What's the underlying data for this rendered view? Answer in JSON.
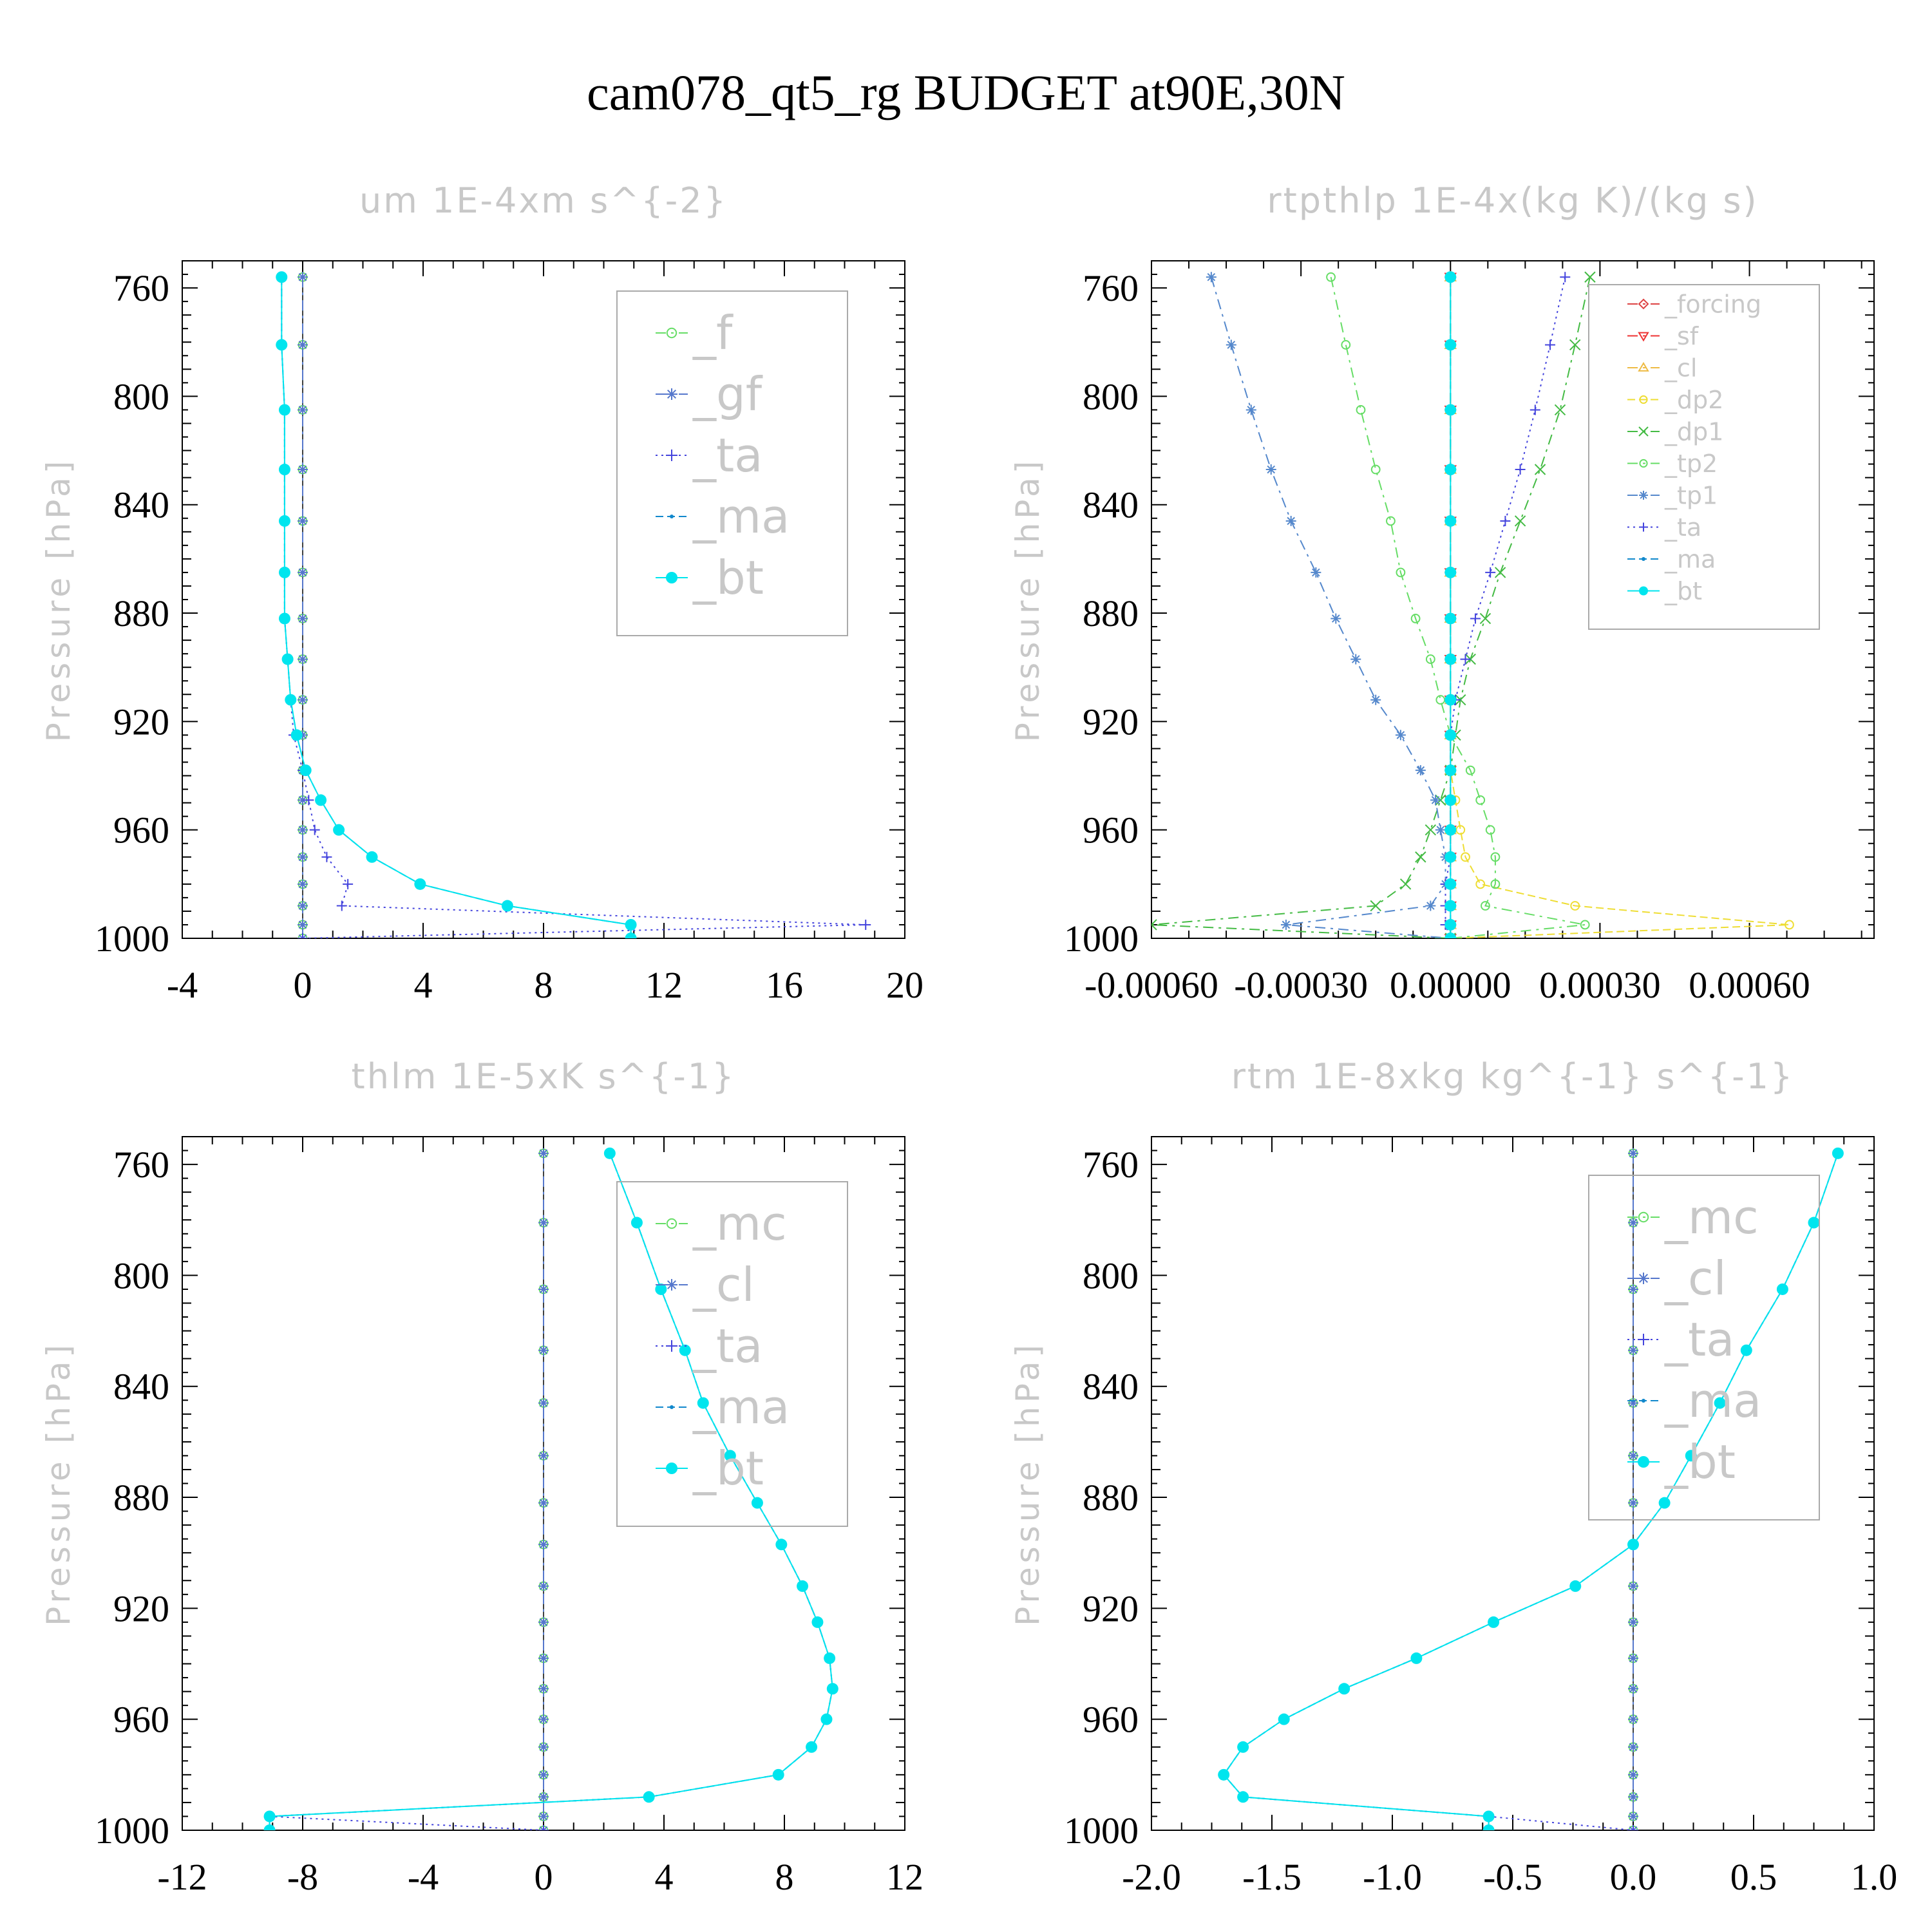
{
  "figure_title": "cam078_qt5_rg  BUDGET at90E,30N",
  "chart_data": [
    {
      "type": "line",
      "title": "um   1E-4xm s^{-2}",
      "ylabel": "Pressure [hPa]",
      "xlabel": "",
      "xlim": [
        -4,
        20
      ],
      "ylim": [
        1000,
        750
      ],
      "xticks": [
        -4,
        0,
        4,
        8,
        12,
        16,
        20
      ],
      "xtick_labels": [
        "-4",
        "0",
        "4",
        "8",
        "12",
        "16",
        "20"
      ],
      "yticks": [
        760,
        800,
        840,
        880,
        920,
        960,
        1000
      ],
      "ytick_labels": [
        "760",
        "800",
        "840",
        "880",
        "920",
        "960",
        "1000"
      ],
      "pressure": [
        756,
        781,
        805,
        827,
        846,
        865,
        882,
        897,
        912,
        925,
        938,
        949,
        960,
        970,
        980,
        988,
        995,
        1000
      ],
      "legend_position": "top-right",
      "series": [
        {
          "name": "_f",
          "color": "#66dd66",
          "marker": "circle-open",
          "dash": "16,8,4,8",
          "values": [
            0,
            0,
            0,
            0,
            0,
            0,
            0,
            0,
            0,
            0,
            0,
            0,
            0,
            0,
            0,
            0,
            0,
            0
          ]
        },
        {
          "name": "_gf",
          "color": "#5577cc",
          "marker": "star",
          "dash": "16,8,4,8",
          "values": [
            0,
            0,
            0,
            0,
            0,
            0,
            0,
            0,
            0,
            0,
            0,
            0,
            0,
            0,
            0,
            0,
            0,
            0
          ]
        },
        {
          "name": "_ta",
          "color": "#4444dd",
          "marker": "plus",
          "dash": "3,6",
          "values": [
            -0.7,
            -0.7,
            -0.6,
            -0.6,
            -0.6,
            -0.6,
            -0.6,
            -0.5,
            -0.4,
            -0.3,
            0,
            0.2,
            0.4,
            0.8,
            1.5,
            1.3,
            18.7,
            0
          ]
        },
        {
          "name": "_ma",
          "color": "#1188cc",
          "marker": "dot",
          "dash": "12,6",
          "values": [
            -0.7,
            -0.7,
            -0.6,
            -0.6,
            -0.6,
            -0.6,
            -0.6,
            -0.5,
            -0.4,
            -0.2,
            0.1,
            0.6,
            1.2,
            2.3,
            3.9,
            6.8,
            10.9,
            10.9
          ]
        },
        {
          "name": "_bt",
          "color": "#00e5ee",
          "marker": "filled-circle",
          "dash": "",
          "values": [
            -0.7,
            -0.7,
            -0.6,
            -0.6,
            -0.6,
            -0.6,
            -0.6,
            -0.5,
            -0.4,
            -0.2,
            0.1,
            0.6,
            1.2,
            2.3,
            3.9,
            6.8,
            10.9,
            10.9
          ]
        }
      ]
    },
    {
      "type": "line",
      "title": "rtpthlp   1E-4x(kg K)/(kg s)",
      "ylabel": "Pressure [hPa]",
      "xlabel": "",
      "xlim": [
        -0.0006,
        0.00085
      ],
      "ylim": [
        1000,
        750
      ],
      "xticks": [
        -0.0006,
        -0.0003,
        0,
        0.0003,
        0.0006
      ],
      "xtick_labels": [
        "-0.00060",
        "-0.00030",
        "0.00000",
        "0.00030",
        "0.00060"
      ],
      "yticks": [
        760,
        800,
        840,
        880,
        920,
        960,
        1000
      ],
      "ytick_labels": [
        "760",
        "800",
        "840",
        "880",
        "920",
        "960",
        "1000"
      ],
      "pressure": [
        756,
        781,
        805,
        827,
        846,
        865,
        882,
        897,
        912,
        925,
        938,
        949,
        960,
        970,
        980,
        988,
        995,
        1000
      ],
      "legend_position": "top-right",
      "series": [
        {
          "name": "_forcing",
          "color": "#dd4444",
          "marker": "diamond-open",
          "dash": "16,8,4,8",
          "values": [
            0,
            0,
            0,
            0,
            0,
            0,
            0,
            0,
            0,
            0,
            0,
            0,
            0,
            0,
            0,
            0,
            0,
            0
          ]
        },
        {
          "name": "_sf",
          "color": "#ee3333",
          "marker": "triangle-down",
          "dash": "16,8,4,8",
          "values": [
            0,
            0,
            0,
            0,
            0,
            0,
            0,
            0,
            0,
            0,
            0,
            0,
            0,
            0,
            0,
            0,
            0,
            0
          ]
        },
        {
          "name": "_cl",
          "color": "#eebb44",
          "marker": "triangle-up",
          "dash": "16,8,4,8",
          "values": [
            0,
            0,
            0,
            0,
            0,
            0,
            0,
            0,
            0,
            0,
            0,
            0,
            0,
            0,
            0,
            0,
            0,
            0
          ]
        },
        {
          "name": "_dp2",
          "color": "#eedd33",
          "marker": "circle-open",
          "dash": "12,6",
          "values": [
            0,
            0,
            0,
            0,
            0,
            0,
            0,
            0,
            0,
            0,
            0,
            1e-05,
            2e-05,
            3e-05,
            6e-05,
            0.00025,
            0.00068,
            0
          ]
        },
        {
          "name": "_dp1",
          "color": "#44bb44",
          "marker": "x",
          "dash": "16,8,4,8",
          "values": [
            0.00028,
            0.00025,
            0.00022,
            0.00018,
            0.00014,
            0.0001,
            7e-05,
            4e-05,
            2e-05,
            1e-05,
            0,
            -2e-05,
            -4e-05,
            -6e-05,
            -9e-05,
            -0.00015,
            -0.0006,
            0
          ]
        },
        {
          "name": "_tp2",
          "color": "#66dd66",
          "marker": "circle-open",
          "dash": "16,8,4,8",
          "values": [
            -0.00024,
            -0.00021,
            -0.00018,
            -0.00015,
            -0.00012,
            -0.0001,
            -7e-05,
            -4e-05,
            -2e-05,
            0,
            4e-05,
            6e-05,
            8e-05,
            9e-05,
            9e-05,
            7e-05,
            0.00027,
            0
          ]
        },
        {
          "name": "_tp1",
          "color": "#5588cc",
          "marker": "star",
          "dash": "16,8,4,8",
          "values": [
            -0.00048,
            -0.00044,
            -0.0004,
            -0.00036,
            -0.00032,
            -0.00027,
            -0.00023,
            -0.00019,
            -0.00015,
            -0.0001,
            -6e-05,
            -3e-05,
            -2e-05,
            -1e-05,
            -1e-05,
            -4e-05,
            -0.00033,
            0
          ]
        },
        {
          "name": "_ta",
          "color": "#4444dd",
          "marker": "plus",
          "dash": "3,6",
          "values": [
            0.00023,
            0.0002,
            0.00017,
            0.00014,
            0.00011,
            8e-05,
            5e-05,
            3e-05,
            1e-05,
            0,
            0,
            0,
            0,
            0,
            -1e-05,
            -1e-05,
            -1e-05,
            0
          ]
        },
        {
          "name": "_ma",
          "color": "#1188cc",
          "marker": "dot",
          "dash": "12,6",
          "values": [
            0,
            0,
            0,
            0,
            0,
            0,
            0,
            0,
            0,
            0,
            0,
            0,
            0,
            0,
            0,
            0,
            0,
            0
          ]
        },
        {
          "name": "_bt",
          "color": "#00e5ee",
          "marker": "filled-circle",
          "dash": "",
          "values": [
            0,
            0,
            0,
            0,
            0,
            0,
            0,
            0,
            0,
            0,
            0,
            0,
            0,
            0,
            0,
            0,
            0,
            0
          ]
        }
      ]
    },
    {
      "type": "line",
      "title": "thlm   1E-5xK s^{-1}",
      "ylabel": "Pressure [hPa]",
      "xlabel": "",
      "xlim": [
        -12,
        12
      ],
      "ylim": [
        1000,
        750
      ],
      "xticks": [
        -12,
        -8,
        -4,
        0,
        4,
        8,
        12
      ],
      "xtick_labels": [
        "-12",
        "-8",
        "-4",
        "0",
        "4",
        "8",
        "12"
      ],
      "yticks": [
        760,
        800,
        840,
        880,
        920,
        960,
        1000
      ],
      "ytick_labels": [
        "760",
        "800",
        "840",
        "880",
        "920",
        "960",
        "1000"
      ],
      "pressure": [
        756,
        781,
        805,
        827,
        846,
        865,
        882,
        897,
        912,
        925,
        938,
        949,
        960,
        970,
        980,
        988,
        995,
        1000
      ],
      "legend_position": "top-right",
      "series": [
        {
          "name": "_mc",
          "color": "#66dd66",
          "marker": "circle-open",
          "dash": "16,8,4,8",
          "values": [
            0,
            0,
            0,
            0,
            0,
            0,
            0,
            0,
            0,
            0,
            0,
            0,
            0,
            0,
            0,
            0,
            0,
            0
          ]
        },
        {
          "name": "_cl",
          "color": "#5577cc",
          "marker": "star",
          "dash": "16,8,4,8",
          "values": [
            0,
            0,
            0,
            0,
            0,
            0,
            0,
            0,
            0,
            0,
            0,
            0,
            0,
            0,
            0,
            0,
            0,
            0
          ]
        },
        {
          "name": "_ta",
          "color": "#4444dd",
          "marker": "plus",
          "dash": "3,6",
          "values": [
            2.2,
            3.1,
            3.9,
            4.7,
            5.3,
            6.2,
            7.1,
            7.9,
            8.6,
            9.1,
            9.5,
            9.6,
            9.4,
            8.9,
            7.8,
            3.5,
            -9.1,
            0
          ]
        },
        {
          "name": "_ma",
          "color": "#1188cc",
          "marker": "dot",
          "dash": "12,6",
          "values": [
            2.2,
            3.1,
            3.9,
            4.7,
            5.3,
            6.2,
            7.1,
            7.9,
            8.6,
            9.1,
            9.5,
            9.6,
            9.4,
            8.9,
            7.8,
            3.5,
            -9.1,
            -9.1
          ]
        },
        {
          "name": "_bt",
          "color": "#00e5ee",
          "marker": "filled-circle",
          "dash": "",
          "values": [
            2.2,
            3.1,
            3.9,
            4.7,
            5.3,
            6.2,
            7.1,
            7.9,
            8.6,
            9.1,
            9.5,
            9.6,
            9.4,
            8.9,
            7.8,
            3.5,
            -9.1,
            -9.1
          ]
        }
      ]
    },
    {
      "type": "line",
      "title": "rtm   1E-8xkg kg^{-1} s^{-1}",
      "ylabel": "Pressure [hPa]",
      "xlabel": "",
      "xlim": [
        -2.0,
        1.0
      ],
      "ylim": [
        1000,
        750
      ],
      "xticks": [
        -2.0,
        -1.5,
        -1.0,
        -0.5,
        0.0,
        0.5,
        1.0
      ],
      "xtick_labels": [
        "-2.0",
        "-1.5",
        "-1.0",
        "-0.5",
        "0.0",
        "0.5",
        "1.0"
      ],
      "yticks": [
        760,
        800,
        840,
        880,
        920,
        960,
        1000
      ],
      "ytick_labels": [
        "760",
        "800",
        "840",
        "880",
        "920",
        "960",
        "1000"
      ],
      "pressure": [
        756,
        781,
        805,
        827,
        846,
        865,
        882,
        897,
        912,
        925,
        938,
        949,
        960,
        970,
        980,
        988,
        995,
        1000
      ],
      "legend_position": "top-right",
      "series": [
        {
          "name": "_mc",
          "color": "#66dd66",
          "marker": "circle-open",
          "dash": "16,8,4,8",
          "values": [
            0,
            0,
            0,
            0,
            0,
            0,
            0,
            0,
            0,
            0,
            0,
            0,
            0,
            0,
            0,
            0,
            0,
            0
          ]
        },
        {
          "name": "_cl",
          "color": "#5577cc",
          "marker": "star",
          "dash": "16,8,4,8",
          "values": [
            0,
            0,
            0,
            0,
            0,
            0,
            0,
            0,
            0,
            0,
            0,
            0,
            0,
            0,
            0,
            0,
            0,
            0
          ]
        },
        {
          "name": "_ta",
          "color": "#4444dd",
          "marker": "plus",
          "dash": "3,6",
          "values": [
            0.85,
            0.75,
            0.62,
            0.47,
            0.36,
            0.24,
            0.13,
            0,
            -0.24,
            -0.58,
            -0.9,
            -1.2,
            -1.45,
            -1.62,
            -1.7,
            -1.62,
            -0.6,
            0
          ]
        },
        {
          "name": "_ma",
          "color": "#1188cc",
          "marker": "dot",
          "dash": "12,6",
          "values": [
            0.85,
            0.75,
            0.62,
            0.47,
            0.36,
            0.24,
            0.13,
            0,
            -0.24,
            -0.58,
            -0.9,
            -1.2,
            -1.45,
            -1.62,
            -1.7,
            -1.62,
            -0.6,
            -0.6
          ]
        },
        {
          "name": "_bt",
          "color": "#00e5ee",
          "marker": "filled-circle",
          "dash": "",
          "values": [
            0.85,
            0.75,
            0.62,
            0.47,
            0.36,
            0.24,
            0.13,
            0,
            -0.24,
            -0.58,
            -0.9,
            -1.2,
            -1.45,
            -1.62,
            -1.7,
            -1.62,
            -0.6,
            -0.6
          ]
        }
      ]
    }
  ]
}
